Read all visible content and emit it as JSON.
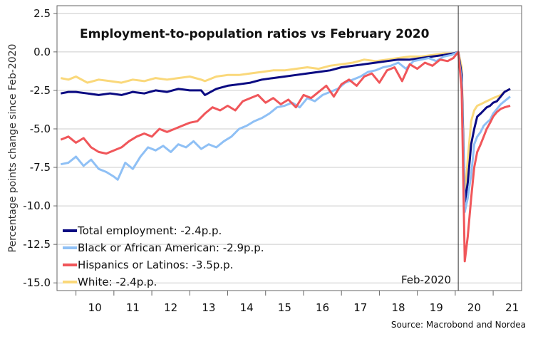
{
  "chart_data": {
    "type": "line",
    "title": "Employment-to-population ratios vs February 2020",
    "ylabel": "Percentage points change since Feb-2020",
    "xlabel": "",
    "source": "Source: Macrobond and Nordea",
    "annotation": "Feb-2020",
    "annotation_x": 2020.08,
    "xlim": [
      2009.5,
      2021.75
    ],
    "ylim": [
      -15.5,
      3
    ],
    "yticks": [
      2.5,
      0.0,
      -2.5,
      -5.0,
      -7.5,
      -10.0,
      -12.5,
      -15.0
    ],
    "ytick_labels": [
      "2.5",
      "0.0",
      "-2.5",
      "-5.0",
      "-7.5",
      "-10.0",
      "-12.5",
      "-15.0"
    ],
    "xtick_labels": [
      "10",
      "11",
      "12",
      "13",
      "14",
      "15",
      "16",
      "17",
      "18",
      "19",
      "20",
      "21"
    ],
    "grid": true,
    "legend_position": "bottom-left",
    "series": [
      {
        "name": "Total employment: -2.4p.p.",
        "color": "#0a0a82",
        "x": [
          2009.6,
          2009.8,
          2010.0,
          2010.3,
          2010.6,
          2010.9,
          2011.2,
          2011.5,
          2011.8,
          2012.1,
          2012.4,
          2012.7,
          2013.0,
          2013.3,
          2013.4,
          2013.7,
          2014.0,
          2014.3,
          2014.6,
          2014.9,
          2015.2,
          2015.5,
          2015.8,
          2016.1,
          2016.4,
          2016.7,
          2017.0,
          2017.3,
          2017.6,
          2017.9,
          2018.2,
          2018.5,
          2018.8,
          2019.1,
          2019.4,
          2019.7,
          2019.95,
          2020.08,
          2020.17,
          2020.25,
          2020.33,
          2020.42,
          2020.5,
          2020.58,
          2020.67,
          2020.75,
          2020.83,
          2020.92,
          2021.0,
          2021.1,
          2021.2,
          2021.3,
          2021.45
        ],
        "values": [
          -2.7,
          -2.6,
          -2.6,
          -2.7,
          -2.8,
          -2.7,
          -2.8,
          -2.6,
          -2.7,
          -2.5,
          -2.6,
          -2.4,
          -2.5,
          -2.5,
          -2.8,
          -2.4,
          -2.2,
          -2.1,
          -2.0,
          -1.8,
          -1.7,
          -1.6,
          -1.5,
          -1.4,
          -1.3,
          -1.2,
          -1.0,
          -0.9,
          -0.8,
          -0.7,
          -0.6,
          -0.5,
          -0.5,
          -0.4,
          -0.3,
          -0.2,
          -0.1,
          0.0,
          -1.5,
          -9.8,
          -8.5,
          -6.0,
          -5.0,
          -4.2,
          -4.0,
          -3.8,
          -3.6,
          -3.5,
          -3.3,
          -3.2,
          -2.9,
          -2.6,
          -2.4
        ]
      },
      {
        "name": "Black or African American: -2.9p.p.",
        "color": "#8fc0f5",
        "x": [
          2009.6,
          2009.8,
          2010.0,
          2010.2,
          2010.4,
          2010.6,
          2010.8,
          2011.0,
          2011.1,
          2011.3,
          2011.5,
          2011.7,
          2011.9,
          2012.1,
          2012.3,
          2012.5,
          2012.7,
          2012.9,
          2013.1,
          2013.3,
          2013.5,
          2013.7,
          2013.9,
          2014.1,
          2014.3,
          2014.5,
          2014.7,
          2014.9,
          2015.1,
          2015.3,
          2015.5,
          2015.7,
          2015.9,
          2016.1,
          2016.3,
          2016.5,
          2016.7,
          2016.9,
          2017.1,
          2017.3,
          2017.5,
          2017.7,
          2017.9,
          2018.1,
          2018.3,
          2018.5,
          2018.7,
          2018.9,
          2019.1,
          2019.3,
          2019.5,
          2019.7,
          2019.9,
          2020.08,
          2020.17,
          2020.25,
          2020.33,
          2020.42,
          2020.5,
          2020.58,
          2020.67,
          2020.75,
          2020.83,
          2020.92,
          2021.0,
          2021.1,
          2021.2,
          2021.3,
          2021.45
        ],
        "values": [
          -7.3,
          -7.2,
          -6.8,
          -7.4,
          -7.0,
          -7.6,
          -7.8,
          -8.1,
          -8.3,
          -7.2,
          -7.6,
          -6.8,
          -6.2,
          -6.4,
          -6.1,
          -6.5,
          -6.0,
          -6.2,
          -5.8,
          -6.3,
          -6.0,
          -6.2,
          -5.8,
          -5.5,
          -5.0,
          -4.8,
          -4.5,
          -4.3,
          -4.0,
          -3.6,
          -3.5,
          -3.3,
          -3.6,
          -3.0,
          -3.2,
          -2.8,
          -2.6,
          -2.4,
          -2.0,
          -1.8,
          -1.6,
          -1.3,
          -1.2,
          -1.0,
          -0.9,
          -0.7,
          -1.1,
          -0.6,
          -0.5,
          -0.4,
          -0.6,
          -0.3,
          -0.2,
          0.0,
          -2.0,
          -10.4,
          -9.5,
          -8.0,
          -6.0,
          -5.5,
          -5.2,
          -4.8,
          -4.6,
          -4.4,
          -4.0,
          -3.7,
          -3.4,
          -3.2,
          -2.9
        ]
      },
      {
        "name": "Hispanics or Latinos: -3.5p.p.",
        "color": "#f0565a",
        "x": [
          2009.6,
          2009.8,
          2010.0,
          2010.2,
          2010.4,
          2010.6,
          2010.8,
          2011.0,
          2011.2,
          2011.4,
          2011.6,
          2011.8,
          2012.0,
          2012.2,
          2012.4,
          2012.6,
          2012.8,
          2013.0,
          2013.2,
          2013.4,
          2013.6,
          2013.8,
          2014.0,
          2014.2,
          2014.4,
          2014.6,
          2014.8,
          2015.0,
          2015.2,
          2015.4,
          2015.6,
          2015.8,
          2016.0,
          2016.2,
          2016.4,
          2016.6,
          2016.8,
          2017.0,
          2017.2,
          2017.4,
          2017.6,
          2017.8,
          2018.0,
          2018.2,
          2018.4,
          2018.6,
          2018.8,
          2019.0,
          2019.2,
          2019.4,
          2019.6,
          2019.8,
          2019.95,
          2020.08,
          2020.17,
          2020.25,
          2020.33,
          2020.42,
          2020.5,
          2020.58,
          2020.67,
          2020.75,
          2020.83,
          2020.92,
          2021.0,
          2021.1,
          2021.2,
          2021.3,
          2021.45
        ],
        "values": [
          -5.7,
          -5.5,
          -5.9,
          -5.6,
          -6.2,
          -6.5,
          -6.6,
          -6.4,
          -6.2,
          -5.8,
          -5.5,
          -5.3,
          -5.5,
          -5.0,
          -5.2,
          -5.0,
          -4.8,
          -4.6,
          -4.5,
          -4.0,
          -3.6,
          -3.8,
          -3.5,
          -3.8,
          -3.2,
          -3.0,
          -2.8,
          -3.3,
          -3.0,
          -3.4,
          -3.1,
          -3.6,
          -2.8,
          -3.0,
          -2.6,
          -2.2,
          -2.9,
          -2.1,
          -1.8,
          -2.2,
          -1.6,
          -1.4,
          -2.0,
          -1.2,
          -1.0,
          -1.9,
          -0.8,
          -1.1,
          -0.7,
          -0.9,
          -0.5,
          -0.6,
          -0.4,
          0.0,
          -2.5,
          -13.6,
          -12.0,
          -9.5,
          -7.5,
          -6.5,
          -6.0,
          -5.5,
          -5.0,
          -4.6,
          -4.2,
          -3.9,
          -3.7,
          -3.6,
          -3.5
        ]
      },
      {
        "name": "White: -2.4p.p.",
        "color": "#fad87a",
        "x": [
          2009.6,
          2009.8,
          2010.0,
          2010.3,
          2010.6,
          2010.9,
          2011.2,
          2011.5,
          2011.8,
          2012.1,
          2012.4,
          2012.7,
          2013.0,
          2013.3,
          2013.4,
          2013.7,
          2014.0,
          2014.3,
          2014.6,
          2014.9,
          2015.2,
          2015.5,
          2015.8,
          2016.1,
          2016.4,
          2016.7,
          2017.0,
          2017.3,
          2017.6,
          2017.9,
          2018.2,
          2018.5,
          2018.8,
          2019.1,
          2019.4,
          2019.7,
          2019.95,
          2020.08,
          2020.17,
          2020.25,
          2020.33,
          2020.42,
          2020.5,
          2020.58,
          2020.67,
          2020.75,
          2020.83,
          2020.92,
          2021.0,
          2021.1,
          2021.2,
          2021.3,
          2021.45
        ],
        "values": [
          -1.7,
          -1.8,
          -1.6,
          -2.0,
          -1.8,
          -1.9,
          -2.0,
          -1.8,
          -1.9,
          -1.7,
          -1.8,
          -1.7,
          -1.6,
          -1.8,
          -1.9,
          -1.6,
          -1.5,
          -1.5,
          -1.4,
          -1.3,
          -1.2,
          -1.2,
          -1.1,
          -1.0,
          -1.1,
          -0.9,
          -0.8,
          -0.7,
          -0.5,
          -0.6,
          -0.5,
          -0.4,
          -0.3,
          -0.3,
          -0.2,
          -0.1,
          -0.1,
          0.0,
          -1.0,
          -9.5,
          -7.0,
          -4.5,
          -3.8,
          -3.5,
          -3.4,
          -3.3,
          -3.2,
          -3.1,
          -3.0,
          -2.9,
          -2.8,
          -2.6,
          -2.4
        ]
      }
    ]
  }
}
